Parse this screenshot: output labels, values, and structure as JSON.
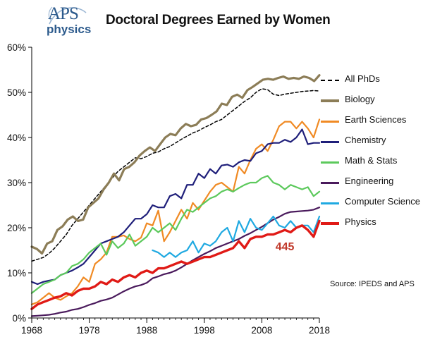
{
  "logo": {
    "aps": "APS",
    "physics": "physics"
  },
  "title": "Doctoral Degrees Earned by Women",
  "source": "Source: IPEDS and APS",
  "chart_data": {
    "type": "line",
    "title": "Doctoral Degrees Earned by Women",
    "xlabel": "",
    "ylabel": "",
    "xlim": [
      1968,
      2018
    ],
    "ylim": [
      0,
      60
    ],
    "x_ticks": [
      1968,
      1978,
      1988,
      1998,
      2008,
      2018
    ],
    "x_tick_labels": [
      "1968",
      "1978",
      "1988",
      "1998",
      "2008",
      "2018"
    ],
    "y_ticks": [
      0,
      10,
      20,
      30,
      40,
      50,
      60
    ],
    "y_tick_labels": [
      "0%",
      "10%",
      "20%",
      "30%",
      "40%",
      "50%",
      "60%"
    ],
    "grid": false,
    "legend_position": "right",
    "annotations": [
      {
        "text": "445",
        "x": 2012,
        "y": 15.8,
        "color": "#c0392b"
      }
    ],
    "series": [
      {
        "name": "All PhDs",
        "color": "#000000",
        "dash": true,
        "width": 1.5,
        "start": 1968,
        "values": [
          12.6,
          13.0,
          13.4,
          14.3,
          15.5,
          17.0,
          18.5,
          20.5,
          22.0,
          23.5,
          25.0,
          26.5,
          28.0,
          29.5,
          31.0,
          32.5,
          33.5,
          34.5,
          35.5,
          35.3,
          35.8,
          36.5,
          36.8,
          37.5,
          38.0,
          38.8,
          39.6,
          40.3,
          41.0,
          41.5,
          42.2,
          42.8,
          43.5,
          44.0,
          45.0,
          46.0,
          47.0,
          48.0,
          48.8,
          50.0,
          50.8,
          50.6,
          49.6,
          49.3,
          49.6,
          49.8,
          50.0,
          50.2,
          50.3,
          50.4,
          50.3
        ]
      },
      {
        "name": "Biology",
        "color": "#8c7d57",
        "width": 3.2,
        "start": 1968,
        "values": [
          15.8,
          15.3,
          14.3,
          16.5,
          17.0,
          19.5,
          20.3,
          21.8,
          22.5,
          21.5,
          21.8,
          24.5,
          25.5,
          26.5,
          28.5,
          30.0,
          32.0,
          30.5,
          33.0,
          33.5,
          34.5,
          36.0,
          37.0,
          37.8,
          37.0,
          38.5,
          40.0,
          40.8,
          40.5,
          42.0,
          43.0,
          42.5,
          42.8,
          44.0,
          44.3,
          45.0,
          45.8,
          47.5,
          47.2,
          49.0,
          49.5,
          48.8,
          50.5,
          51.2,
          52.0,
          52.8,
          53.0,
          52.8,
          53.2,
          53.5,
          53.0,
          53.2,
          53.0,
          53.5,
          53.2,
          52.5,
          53.8
        ]
      },
      {
        "name": "Earth Sciences",
        "color": "#f08a24",
        "width": 2.2,
        "start": 1968,
        "values": [
          3.0,
          3.5,
          4.5,
          5.5,
          4.5,
          4.0,
          4.8,
          5.5,
          7.0,
          9.0,
          8.0,
          12.0,
          13.0,
          14.5,
          18.0,
          18.0,
          18.3,
          17.5,
          17.0,
          17.8,
          21.0,
          20.5,
          23.8,
          17.0,
          19.0,
          21.5,
          24.0,
          22.0,
          25.5,
          24.0,
          26.0,
          28.0,
          29.5,
          30.0,
          29.0,
          28.0,
          33.5,
          32.0,
          35.0,
          37.5,
          38.5,
          37.0,
          39.5,
          42.5,
          43.5,
          43.5,
          42.0,
          43.5,
          42.0,
          40.0,
          44.0
        ]
      },
      {
        "name": "Chemistry",
        "color": "#1f1f7a",
        "width": 2.2,
        "start": 1968,
        "values": [
          8.0,
          7.5,
          8.0,
          8.3,
          8.5,
          9.5,
          10.0,
          10.5,
          11.2,
          12.0,
          13.5,
          15.0,
          16.5,
          17.0,
          17.5,
          18.0,
          19.0,
          20.5,
          22.0,
          22.0,
          23.0,
          25.0,
          24.5,
          24.5,
          27.0,
          27.5,
          26.5,
          29.5,
          29.5,
          32.0,
          31.0,
          33.0,
          32.0,
          33.8,
          34.0,
          33.5,
          34.5,
          35.0,
          34.8,
          36.5,
          37.0,
          38.5,
          38.8,
          38.8,
          39.5,
          39.0,
          40.0,
          41.8,
          38.5,
          38.8,
          38.8
        ]
      },
      {
        "name": "Math & Stats",
        "color": "#5cc95c",
        "width": 2.2,
        "start": 1968,
        "values": [
          5.5,
          6.5,
          7.5,
          8.0,
          8.5,
          9.5,
          10.0,
          11.5,
          12.0,
          13.0,
          14.5,
          15.5,
          16.5,
          14.0,
          17.0,
          15.5,
          16.5,
          18.5,
          16.0,
          17.0,
          18.0,
          20.0,
          19.0,
          20.0,
          21.0,
          19.5,
          22.0,
          24.0,
          23.5,
          24.5,
          25.5,
          26.5,
          27.0,
          28.0,
          28.5,
          28.0,
          28.8,
          29.5,
          30.0,
          30.0,
          31.0,
          31.5,
          30.0,
          29.5,
          28.5,
          29.5,
          29.0,
          28.5,
          29.0,
          27.0,
          28.0
        ]
      },
      {
        "name": "Engineering",
        "color": "#4a1a5c",
        "width": 2.2,
        "start": 1968,
        "values": [
          0.4,
          0.5,
          0.6,
          0.7,
          0.9,
          1.2,
          1.4,
          1.8,
          2.0,
          2.4,
          2.9,
          3.3,
          3.8,
          4.1,
          4.5,
          5.2,
          5.9,
          6.5,
          7.0,
          7.3,
          7.8,
          8.8,
          9.2,
          9.7,
          10.0,
          10.5,
          11.2,
          12.0,
          12.8,
          13.5,
          14.2,
          14.8,
          15.5,
          16.0,
          16.5,
          17.0,
          17.5,
          18.2,
          18.8,
          19.5,
          20.2,
          21.0,
          21.8,
          22.4,
          23.1,
          23.5,
          23.6,
          23.7,
          23.8,
          24.0,
          24.5
        ]
      },
      {
        "name": "Computer Science",
        "color": "#1fa9e1",
        "width": 2.2,
        "start": 1989,
        "values": [
          15.0,
          14.5,
          13.5,
          14.5,
          13.5,
          14.5,
          15.0,
          17.0,
          14.5,
          16.5,
          16.0,
          17.0,
          19.0,
          20.0,
          17.0,
          21.5,
          19.0,
          22.0,
          20.0,
          19.5,
          21.0,
          22.5,
          20.5,
          20.0,
          21.5,
          20.0,
          20.5,
          20.5,
          19.0,
          22.5
        ]
      },
      {
        "name": "Physics",
        "color": "#e01a16",
        "width": 3.4,
        "start": 1968,
        "values": [
          2.0,
          3.0,
          3.5,
          4.0,
          4.5,
          4.8,
          5.5,
          5.0,
          6.0,
          6.5,
          6.5,
          7.0,
          8.0,
          7.5,
          8.5,
          8.0,
          9.0,
          9.5,
          9.0,
          10.0,
          10.5,
          10.0,
          11.0,
          11.0,
          11.5,
          12.0,
          12.5,
          12.0,
          12.5,
          13.0,
          13.5,
          13.5,
          14.0,
          14.5,
          15.0,
          15.5,
          17.0,
          15.5,
          17.5,
          18.0,
          18.0,
          18.5,
          18.5,
          19.0,
          19.5,
          19.0,
          20.0,
          20.5,
          19.5,
          18.0,
          21.5
        ]
      }
    ]
  }
}
